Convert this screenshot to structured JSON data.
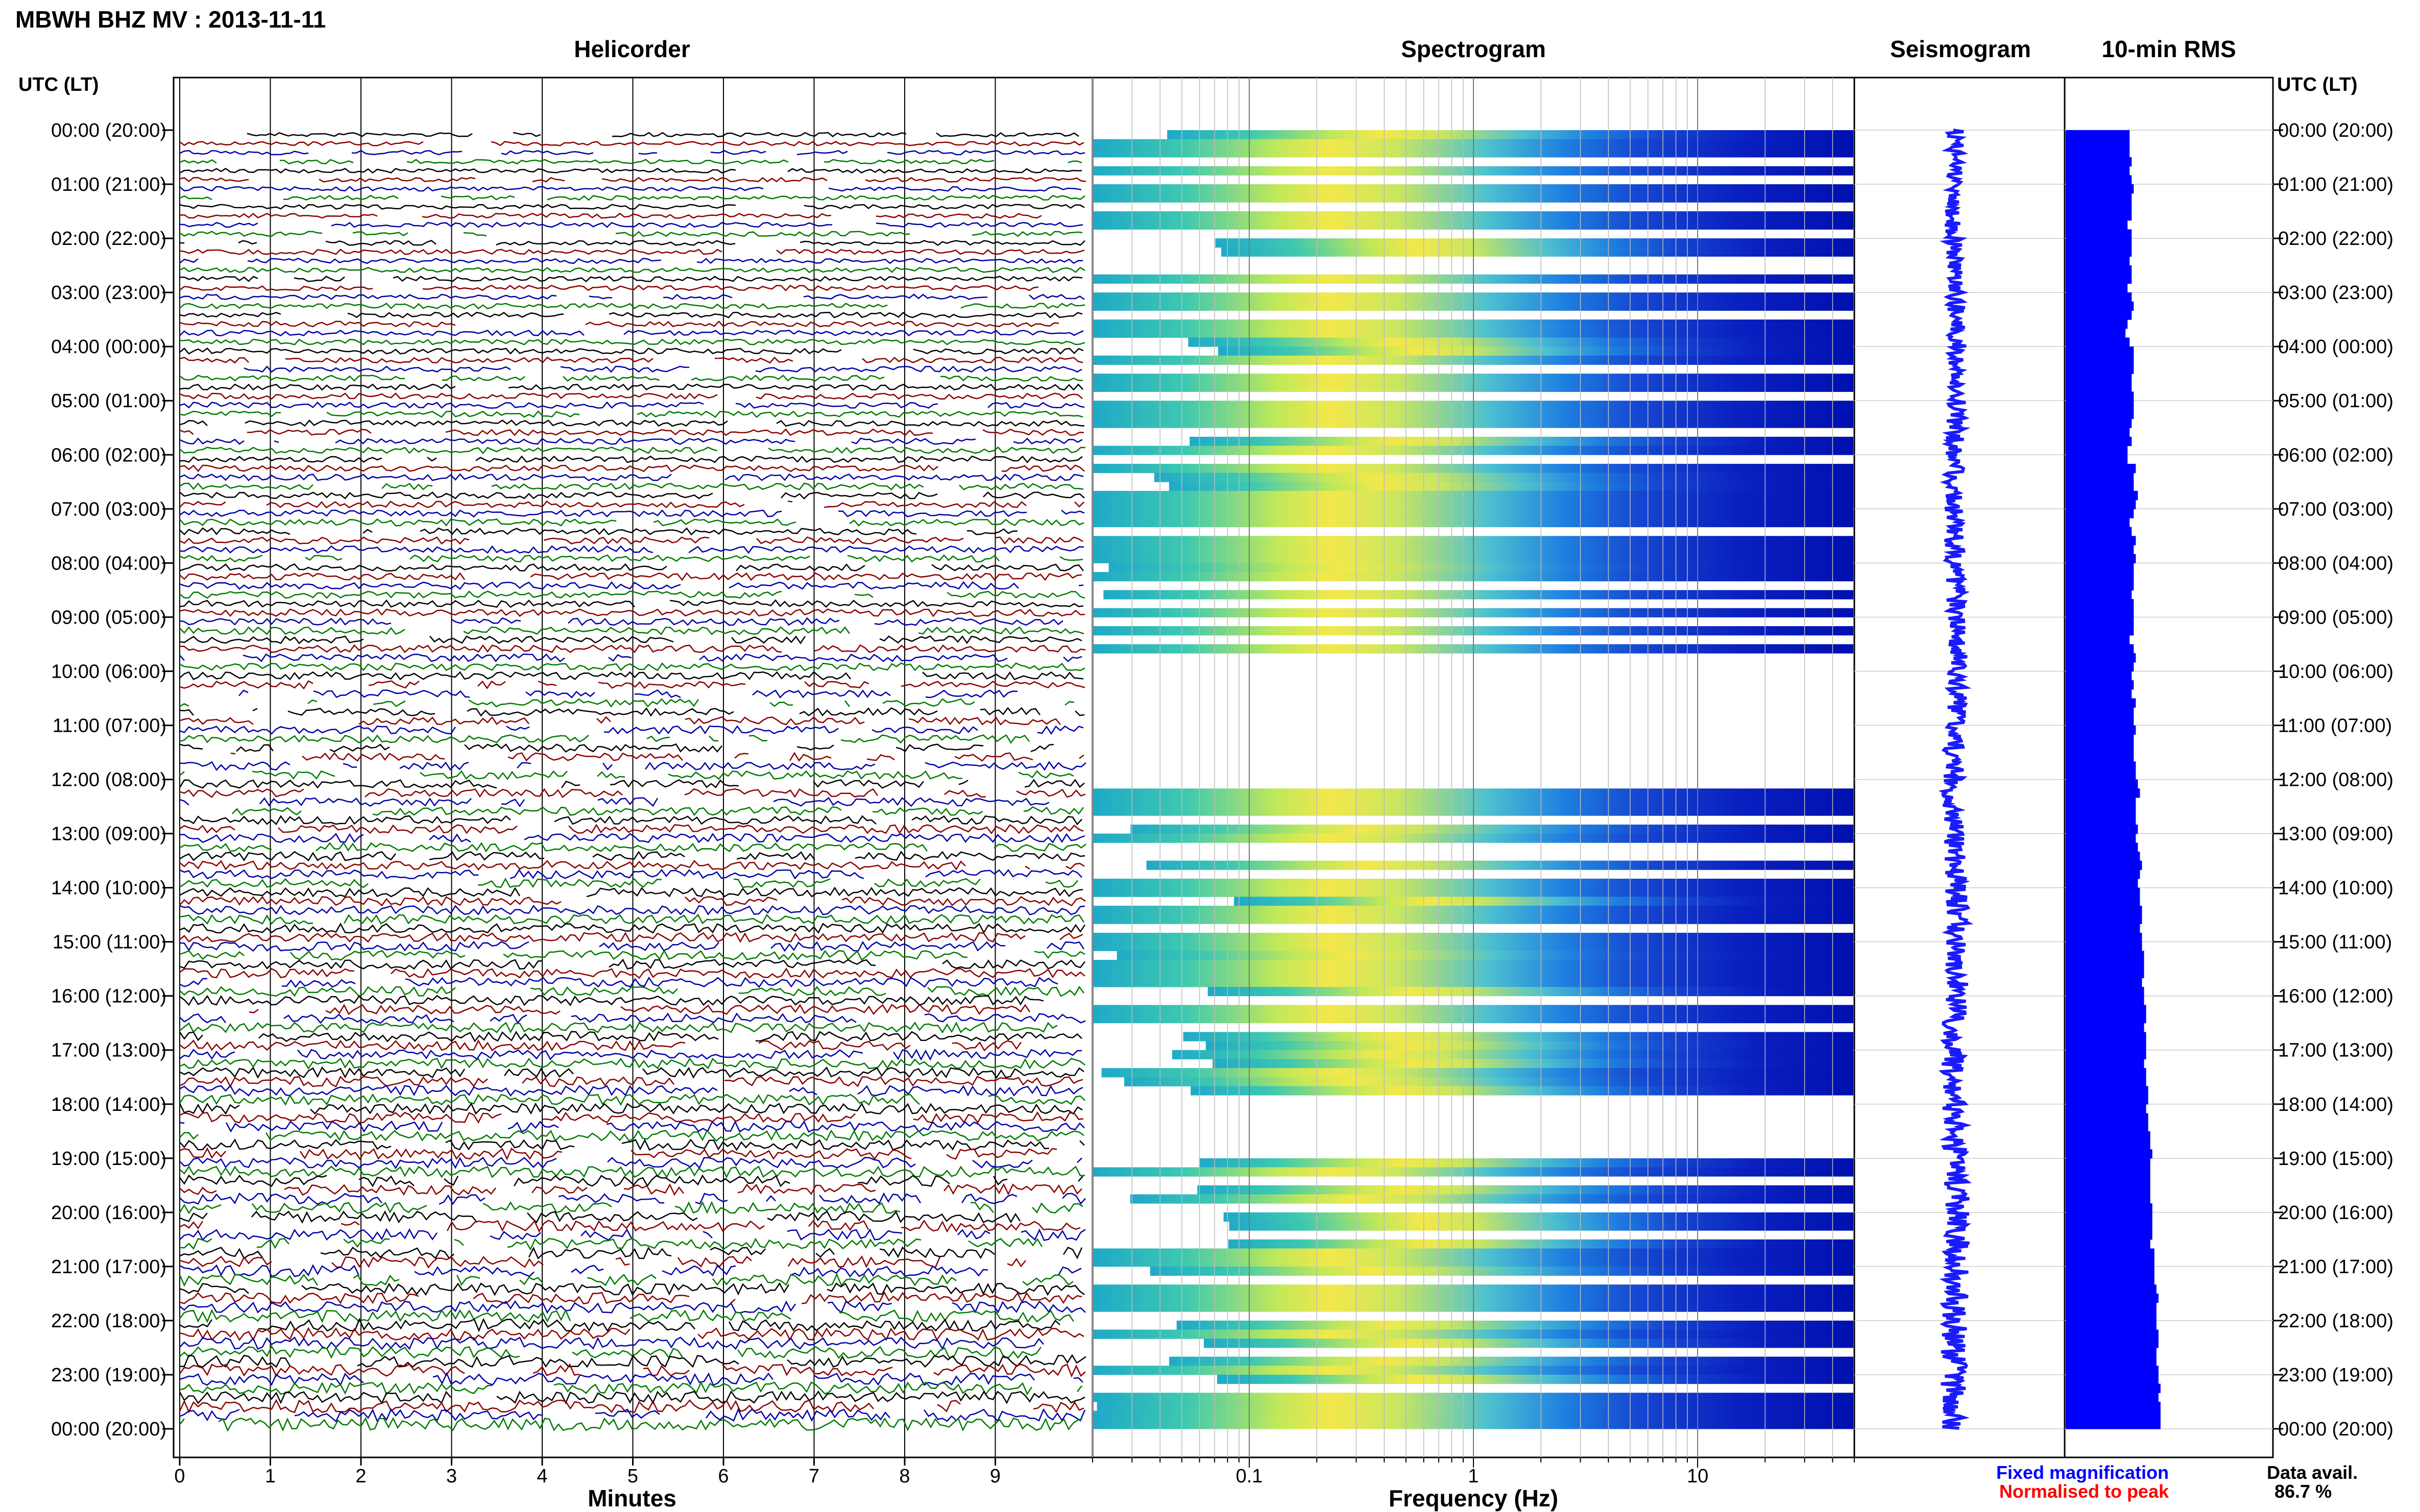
{
  "header": {
    "title": "MBWH BHZ MV : 2013-11-11",
    "axis_label_left": "UTC (LT)",
    "axis_label_right": "UTC (LT)"
  },
  "footer": {
    "fixed_magnification": "Fixed magnification",
    "normalised_to_peak": "Normalised to peak",
    "data_avail_label": "Data avail.",
    "data_avail_value": "86.7 %"
  },
  "colors": {
    "trace_colors": [
      "#000000",
      "#8b0000",
      "#0000aa",
      "#007a00"
    ],
    "seismogram": "#1a1aff",
    "rms": "#0000ff",
    "fixed_label": "#0000ff",
    "normalised_label": "#ff0000"
  },
  "time_labels": [
    "00:00 (20:00)",
    "01:00 (21:00)",
    "02:00 (22:00)",
    "03:00 (23:00)",
    "04:00 (00:00)",
    "05:00 (01:00)",
    "06:00 (02:00)",
    "07:00 (03:00)",
    "08:00 (04:00)",
    "09:00 (05:00)",
    "10:00 (06:00)",
    "11:00 (07:00)",
    "12:00 (08:00)",
    "13:00 (09:00)",
    "14:00 (10:00)",
    "15:00 (11:00)",
    "16:00 (12:00)",
    "17:00 (13:00)",
    "18:00 (14:00)",
    "19:00 (15:00)",
    "20:00 (16:00)",
    "21:00 (17:00)",
    "22:00 (18:00)",
    "23:00 (19:00)",
    "00:00 (20:00)"
  ],
  "chart_data": [
    {
      "type": "line",
      "title": "Helicorder",
      "xlabel": "Minutes",
      "xlim": [
        0,
        10
      ],
      "x_ticks": [
        0,
        1,
        2,
        3,
        4,
        5,
        6,
        7,
        8,
        9
      ],
      "rows_per_hour": 6,
      "hours": 24
    },
    {
      "type": "heatmap",
      "title": "Spectrogram",
      "xlabel": "Frequency (Hz)",
      "x_scale": "log",
      "xlim": [
        0.02,
        50
      ],
      "x_ticks": [
        0.1,
        1,
        10
      ],
      "x_tick_labels": [
        "0.1",
        "1",
        "10"
      ]
    },
    {
      "type": "line",
      "title": "Seismogram"
    },
    {
      "type": "bar",
      "title": "10-min RMS",
      "orientation": "horizontal",
      "values": [
        0.31,
        0.31,
        0.31,
        0.32,
        0.31,
        0.32,
        0.33,
        0.32,
        0.32,
        0.32,
        0.3,
        0.32,
        0.32,
        0.32,
        0.31,
        0.32,
        0.32,
        0.3,
        0.32,
        0.33,
        0.32,
        0.3,
        0.29,
        0.31,
        0.33,
        0.33,
        0.33,
        0.32,
        0.32,
        0.33,
        0.33,
        0.33,
        0.32,
        0.31,
        0.32,
        0.3,
        0.3,
        0.34,
        0.33,
        0.33,
        0.35,
        0.34,
        0.33,
        0.31,
        0.32,
        0.34,
        0.33,
        0.34,
        0.33,
        0.33,
        0.33,
        0.32,
        0.33,
        0.33,
        0.33,
        0.33,
        0.31,
        0.33,
        0.34,
        0.33,
        0.32,
        0.33,
        0.32,
        0.34,
        0.33,
        0.33,
        0.34,
        0.33,
        0.33,
        0.33,
        0.34,
        0.34,
        0.35,
        0.36,
        0.34,
        0.34,
        0.34,
        0.35,
        0.34,
        0.35,
        0.36,
        0.37,
        0.36,
        0.35,
        0.36,
        0.36,
        0.37,
        0.37,
        0.36,
        0.37,
        0.37,
        0.38,
        0.38,
        0.38,
        0.37,
        0.38,
        0.38,
        0.39,
        0.39,
        0.38,
        0.39,
        0.39,
        0.39,
        0.38,
        0.39,
        0.39,
        0.4,
        0.4,
        0.39,
        0.4,
        0.4,
        0.41,
        0.41,
        0.42,
        0.41,
        0.41,
        0.41,
        0.41,
        0.41,
        0.42,
        0.42,
        0.42,
        0.42,
        0.41,
        0.43,
        0.43,
        0.43,
        0.43,
        0.44,
        0.45,
        0.44,
        0.44,
        0.44,
        0.45,
        0.45,
        0.44,
        0.44,
        0.45,
        0.45,
        0.46,
        0.45,
        0.46,
        0.46,
        0.46
      ]
    }
  ]
}
